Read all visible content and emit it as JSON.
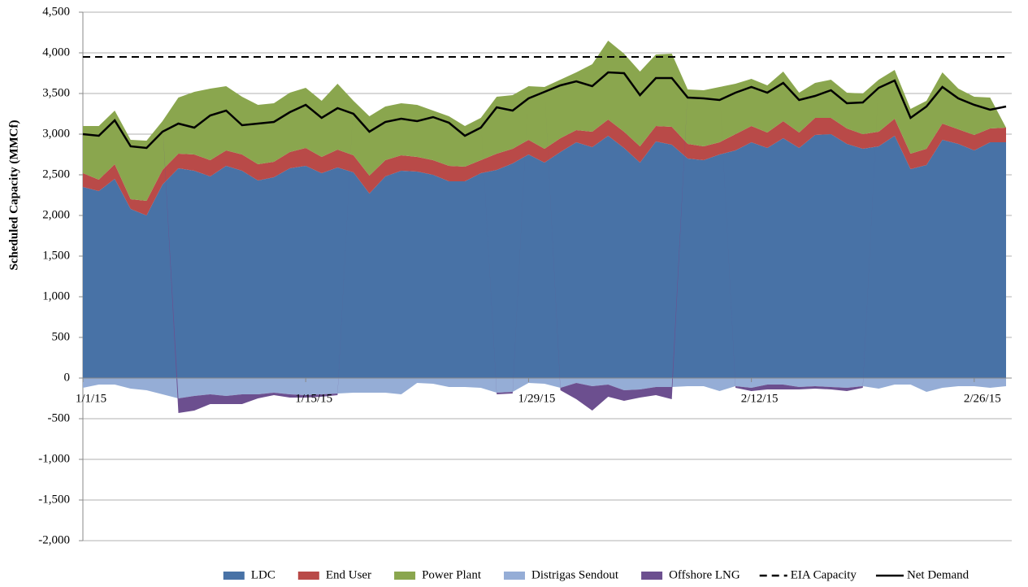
{
  "chart_data": {
    "type": "area",
    "y_label": "Scheduled Capacity (MMCf)",
    "categories": [
      "1/1/15",
      null,
      null,
      null,
      null,
      null,
      null,
      null,
      null,
      null,
      null,
      null,
      null,
      null,
      "1/15/15",
      null,
      null,
      null,
      null,
      null,
      null,
      null,
      null,
      null,
      null,
      null,
      null,
      null,
      "1/29/15",
      null,
      null,
      null,
      null,
      null,
      null,
      null,
      null,
      null,
      null,
      null,
      null,
      null,
      "2/12/15",
      null,
      null,
      null,
      null,
      null,
      null,
      null,
      null,
      null,
      null,
      null,
      null,
      null,
      "2/26/15",
      null,
      null
    ],
    "ylim": [
      -2000,
      4500
    ],
    "yticks": [
      {
        "value": -2000,
        "label": "-2,000"
      },
      {
        "value": -1500,
        "label": "-1,500"
      },
      {
        "value": -1000,
        "label": "-1,000"
      },
      {
        "value": -500,
        "label": "-500"
      },
      0,
      500,
      {
        "value": 1000,
        "label": "1,000"
      },
      {
        "value": 1500,
        "label": "1,500"
      },
      {
        "value": 2000,
        "label": "2,000"
      },
      {
        "value": 2500,
        "label": "2,500"
      },
      {
        "value": 3000,
        "label": "3,000"
      },
      {
        "value": 3500,
        "label": "3,500"
      },
      {
        "value": 4000,
        "label": "4,000"
      },
      {
        "value": 4500,
        "label": "4,500"
      }
    ],
    "grid": true,
    "legend": "bottom",
    "series": [
      {
        "name": "LDC",
        "type": "area",
        "color": "#4872a6",
        "values": [
          2350,
          2300,
          2450,
          2080,
          2000,
          2380,
          2580,
          2550,
          2480,
          2610,
          2550,
          2430,
          2470,
          2580,
          2610,
          2520,
          2590,
          2530,
          2270,
          2480,
          2550,
          2540,
          2500,
          2420,
          2420,
          2520,
          2560,
          2640,
          2750,
          2650,
          2780,
          2900,
          2840,
          2980,
          2830,
          2650,
          2910,
          2870,
          2700,
          2680,
          2750,
          2800,
          2900,
          2830,
          2950,
          2830,
          2990,
          3000,
          2880,
          2820,
          2850,
          2980,
          2570,
          2620,
          2930,
          2880,
          2800,
          2900,
          2900
        ]
      },
      {
        "name": "End User",
        "type": "area",
        "color": "#b94a48",
        "values": [
          170,
          140,
          180,
          120,
          180,
          180,
          180,
          200,
          200,
          190,
          200,
          200,
          190,
          200,
          220,
          200,
          220,
          210,
          220,
          200,
          190,
          180,
          180,
          190,
          180,
          160,
          200,
          180,
          180,
          170,
          170,
          150,
          190,
          200,
          200,
          200,
          190,
          220,
          180,
          170,
          150,
          200,
          200,
          190,
          210,
          190,
          210,
          200,
          190,
          180,
          180,
          210,
          190,
          200,
          200,
          180,
          190,
          170,
          180
        ]
      },
      {
        "name": "Power Plant",
        "type": "area",
        "color": "#8aa64e",
        "values": [
          580,
          660,
          660,
          730,
          740,
          600,
          690,
          770,
          880,
          790,
          710,
          730,
          720,
          730,
          740,
          690,
          810,
          670,
          730,
          660,
          640,
          640,
          610,
          610,
          500,
          520,
          700,
          660,
          660,
          760,
          720,
          710,
          830,
          970,
          960,
          920,
          880,
          900,
          670,
          690,
          680,
          620,
          580,
          580,
          610,
          490,
          430,
          470,
          440,
          500,
          640,
          600,
          550,
          590,
          630,
          500,
          470,
          380,
          0
        ]
      },
      {
        "name": "Distrigas Sendout",
        "type": "area",
        "color": "#95add6",
        "values": [
          -120,
          -80,
          -80,
          -130,
          -150,
          -200,
          -250,
          -220,
          -200,
          -220,
          -200,
          -200,
          -180,
          -200,
          -210,
          -200,
          -190,
          -180,
          -180,
          -180,
          -200,
          -60,
          -70,
          -110,
          -110,
          -120,
          -180,
          -170,
          -60,
          -70,
          -120,
          -60,
          -100,
          -80,
          -150,
          -140,
          -110,
          -110,
          -100,
          -100,
          -160,
          -100,
          -120,
          -80,
          -80,
          -110,
          -100,
          -110,
          -120,
          -100,
          -130,
          -80,
          -80,
          -170,
          -120,
          -100,
          -100,
          -120,
          -100
        ]
      },
      {
        "name": "Offshore LNG",
        "type": "area",
        "color": "#6c4f8f",
        "values": [
          0,
          0,
          0,
          0,
          0,
          0,
          -180,
          -180,
          -120,
          -100,
          -120,
          -50,
          -30,
          -40,
          -30,
          -30,
          -20,
          0,
          0,
          0,
          0,
          0,
          0,
          0,
          0,
          0,
          -20,
          -20,
          0,
          0,
          -30,
          -200,
          -300,
          -150,
          -130,
          -100,
          -100,
          -150,
          0,
          0,
          0,
          -20,
          -40,
          -60,
          -60,
          -30,
          -30,
          -30,
          -40,
          -20,
          0,
          0,
          0,
          0,
          0,
          0,
          0,
          0,
          0
        ]
      },
      {
        "name": "EIA Capacity",
        "type": "line",
        "dash": true,
        "color": "#000000",
        "values": [
          3950,
          3950,
          3950,
          3950,
          3950,
          3950,
          3950,
          3950,
          3950,
          3950,
          3950,
          3950,
          3950,
          3950,
          3950,
          3950,
          3950,
          3950,
          3950,
          3950,
          3950,
          3950,
          3950,
          3950,
          3950,
          3950,
          3950,
          3950,
          3950,
          3950,
          3950,
          3950,
          3950,
          3950,
          3950,
          3950,
          3950,
          3950,
          3950,
          3950,
          3950,
          3950,
          3950,
          3950,
          3950,
          3950,
          3950,
          3950,
          3950,
          3950,
          3950,
          3950,
          3950,
          3950,
          3950,
          3950,
          3950,
          3950,
          3950
        ]
      },
      {
        "name": "Net Demand",
        "type": "line",
        "dash": false,
        "color": "#000000",
        "values": [
          3000,
          2980,
          3170,
          2850,
          2830,
          3030,
          3130,
          3080,
          3230,
          3290,
          3110,
          3130,
          3150,
          3270,
          3360,
          3200,
          3320,
          3250,
          3030,
          3150,
          3190,
          3160,
          3210,
          3140,
          2980,
          3080,
          3330,
          3290,
          3440,
          3520,
          3600,
          3650,
          3590,
          3760,
          3750,
          3480,
          3690,
          3690,
          3450,
          3440,
          3420,
          3510,
          3580,
          3510,
          3630,
          3420,
          3470,
          3540,
          3380,
          3390,
          3570,
          3660,
          3200,
          3340,
          3580,
          3440,
          3360,
          3300,
          3340
        ]
      }
    ]
  }
}
